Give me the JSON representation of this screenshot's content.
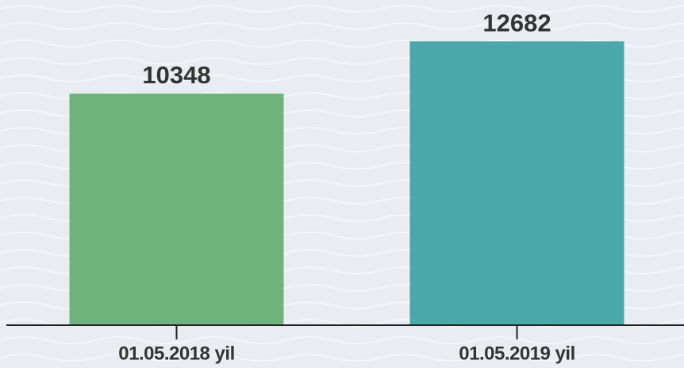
{
  "chart_data": {
    "type": "bar",
    "categories": [
      "01.05.2018 yil",
      "01.05.2019 yil"
    ],
    "values": [
      10348,
      12682
    ],
    "colors": [
      "#6db37b",
      "#4aa8aa"
    ],
    "ylim": [
      0,
      14000
    ]
  }
}
